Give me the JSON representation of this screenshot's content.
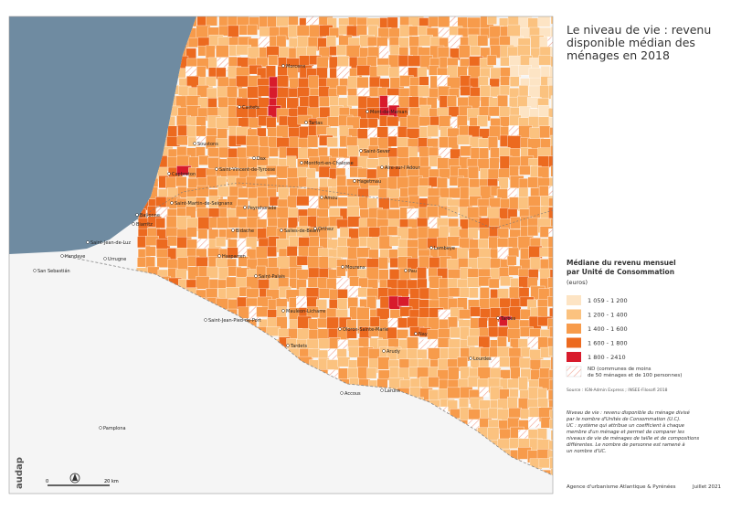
{
  "header": {
    "title_lines": [
      "Le niveau de vie : revenu",
      "disponible médian des",
      "ménages en 2018"
    ]
  },
  "legend": {
    "title_lines": [
      "Médiane du revenu mensuel",
      "par Unité de Consommation"
    ],
    "unit": "(euros)",
    "items": [
      {
        "label": "1 059 - 1 200",
        "color": "#fde4c4"
      },
      {
        "label": "1 200 - 1 400",
        "color": "#fbc27f"
      },
      {
        "label": "1 400 - 1 600",
        "color": "#f79b4b"
      },
      {
        "label": "1 600 - 1 800",
        "color": "#ec6a1f"
      },
      {
        "label": "1 800 - 2410",
        "color": "#d81b2c"
      }
    ],
    "nd_lines": [
      "ND (communes de moins",
      "de 50 ménages et de 100 personnes)"
    ]
  },
  "source": "Source : IGN-Admin Express ; INSEE-Filosofi 2018",
  "notes": [
    "Niveau de vie : revenu disponible du ménage divisé",
    "par le nombre d'Unités de Consommation (U.C).",
    "UC : système qui attribue un coefficient à chaque",
    "membre d'un ménage et permet de comparer les",
    "niveaux de vie de ménages de taille et de compositions",
    "différentes. Le nombre de personne est ramené à",
    "un nombre d'UC."
  ],
  "footer": {
    "agency": "Agence d'urbanisme Atlantique & Pyrénées",
    "date": "Juillet 2021",
    "logo": "audap"
  },
  "scale": {
    "start": "0",
    "end": "20 km"
  },
  "places": [
    "Morcenx",
    "Castets",
    "Tartas",
    "Mont-de-Marsan",
    "Soustons",
    "Dax",
    "Saint-Vincent-de-Tyrosse",
    "Capbreton",
    "Montfort-en-Chalosse",
    "Saint-Sever",
    "Hagetmau",
    "Aire-sur-l'Adour",
    "Peyrehorade",
    "Amou",
    "Saint-Martin-de-Seignanx",
    "Bayonne",
    "Biarritz",
    "Saint-Jean-de-Luz",
    "Hendaye",
    "Urrugne",
    "Hasparren",
    "Bidache",
    "Salies-de-Béarn",
    "Orthez",
    "Lembeye",
    "Saint-Palais",
    "Mourenx",
    "Pau",
    "Nay",
    "Tarbes",
    "Lourdes",
    "Oloron-Sainte-Marie",
    "Mauléon-Licharre",
    "Saint-Jean-Pied-de-Port",
    "Tardets",
    "Arudy",
    "Accous",
    "Laruns",
    "San Sebastián",
    "Pamplona"
  ]
}
